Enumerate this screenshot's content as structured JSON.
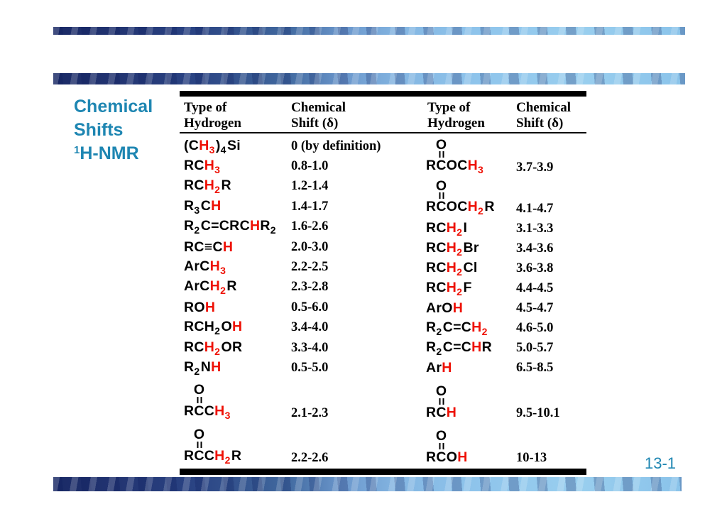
{
  "slide": {
    "title": {
      "line1": "Chemical",
      "line2": "Shifts",
      "line3_sup": "1",
      "line3_text": "H-NMR"
    },
    "page_number": "13-1",
    "colors": {
      "accent": "#1e86b2",
      "highlight_red": "#ee1105",
      "bar_black": "#000000"
    }
  },
  "table": {
    "headers": [
      {
        "line1": "Type of",
        "line2": "Hydrogen"
      },
      {
        "line1": "Chemical",
        "line2": "Shift (δ)"
      },
      {
        "line1": "Type of",
        "line2": "Hydrogen"
      },
      {
        "line1": "Chemical",
        "line2": "Shift (δ)"
      }
    ],
    "left_rows": [
      {
        "formula": [
          {
            "t": "("
          },
          {
            "t": "C"
          },
          {
            "t": "H",
            "red": true
          },
          {
            "t": "3",
            "red": true,
            "sub": true
          },
          {
            "t": ")"
          },
          {
            "t": "4",
            "sub": true
          },
          {
            "t": "Si"
          }
        ],
        "shift": "0 (by definition)"
      },
      {
        "formula": [
          {
            "t": "R"
          },
          {
            "t": "C"
          },
          {
            "t": "H",
            "red": true
          },
          {
            "t": "3",
            "red": true,
            "sub": true
          }
        ],
        "shift": "0.8-1.0"
      },
      {
        "formula": [
          {
            "t": "R"
          },
          {
            "t": "C"
          },
          {
            "t": "H",
            "red": true
          },
          {
            "t": "2",
            "red": true,
            "sub": true
          },
          {
            "t": "R"
          }
        ],
        "shift": "1.2-1.4"
      },
      {
        "formula": [
          {
            "t": "R"
          },
          {
            "t": "3",
            "sub": true
          },
          {
            "t": "C"
          },
          {
            "t": "H",
            "red": true
          }
        ],
        "shift": "1.4-1.7"
      },
      {
        "formula": [
          {
            "t": "R"
          },
          {
            "t": "2",
            "sub": true
          },
          {
            "t": "C"
          },
          {
            "t": "="
          },
          {
            "t": "C"
          },
          {
            "t": "R"
          },
          {
            "t": "C"
          },
          {
            "t": "H",
            "red": true
          },
          {
            "t": "R"
          },
          {
            "t": "2",
            "sub": true
          }
        ],
        "shift": "1.6-2.6"
      },
      {
        "formula": [
          {
            "t": "R"
          },
          {
            "t": "C"
          },
          {
            "t": "≡"
          },
          {
            "t": "C"
          },
          {
            "t": "H",
            "red": true
          }
        ],
        "shift": "2.0-3.0"
      },
      {
        "formula": [
          {
            "t": "Ar"
          },
          {
            "t": "C"
          },
          {
            "t": "H",
            "red": true
          },
          {
            "t": "3",
            "red": true,
            "sub": true
          }
        ],
        "shift": "2.2-2.5"
      },
      {
        "formula": [
          {
            "t": "Ar"
          },
          {
            "t": "C"
          },
          {
            "t": "H",
            "red": true
          },
          {
            "t": "2",
            "red": true,
            "sub": true
          },
          {
            "t": "R"
          }
        ],
        "shift": "2.3-2.8"
      },
      {
        "formula": [
          {
            "t": "R"
          },
          {
            "t": "O"
          },
          {
            "t": "H",
            "red": true
          }
        ],
        "shift": "0.5-6.0"
      },
      {
        "formula": [
          {
            "t": "R"
          },
          {
            "t": "C"
          },
          {
            "t": "H"
          },
          {
            "t": "2",
            "sub": true
          },
          {
            "t": "O"
          },
          {
            "t": "H",
            "red": true
          }
        ],
        "shift": "3.4-4.0"
      },
      {
        "formula": [
          {
            "t": "R"
          },
          {
            "t": "C"
          },
          {
            "t": "H",
            "red": true
          },
          {
            "t": "2",
            "red": true,
            "sub": true
          },
          {
            "t": "O"
          },
          {
            "t": "R"
          }
        ],
        "shift": "3.3-4.0"
      },
      {
        "formula": [
          {
            "t": "R"
          },
          {
            "t": "2",
            "sub": true
          },
          {
            "t": "N"
          },
          {
            "t": "H",
            "red": true
          }
        ],
        "shift": "0.5-5.0"
      },
      {
        "tall": true,
        "formula": [
          {
            "t": "R"
          },
          {
            "t": "C",
            "o": "O"
          },
          {
            "t": "C"
          },
          {
            "t": "H",
            "red": true
          },
          {
            "t": "3",
            "red": true,
            "sub": true
          }
        ],
        "shift": "2.1-2.3"
      },
      {
        "tall": true,
        "formula": [
          {
            "t": "R"
          },
          {
            "t": "C",
            "o": "O"
          },
          {
            "t": "C"
          },
          {
            "t": "H",
            "red": true
          },
          {
            "t": "2",
            "red": true,
            "sub": true
          },
          {
            "t": "R"
          }
        ],
        "shift": "2.2-2.6"
      }
    ],
    "right_rows": [
      {
        "tall": true,
        "formula": [
          {
            "t": "R"
          },
          {
            "t": "C",
            "o": "O"
          },
          {
            "t": "O"
          },
          {
            "t": "C"
          },
          {
            "t": "H",
            "red": true
          },
          {
            "t": "3",
            "red": true,
            "sub": true
          }
        ],
        "shift": "3.7-3.9"
      },
      {
        "tall": true,
        "formula": [
          {
            "t": "R"
          },
          {
            "t": "C",
            "o": "O"
          },
          {
            "t": "O"
          },
          {
            "t": "C"
          },
          {
            "t": "H",
            "red": true
          },
          {
            "t": "2",
            "red": true,
            "sub": true
          },
          {
            "t": "R"
          }
        ],
        "shift": "4.1-4.7"
      },
      {
        "formula": [
          {
            "t": "R"
          },
          {
            "t": "C"
          },
          {
            "t": "H",
            "red": true
          },
          {
            "t": "2",
            "red": true,
            "sub": true
          },
          {
            "t": "I"
          }
        ],
        "shift": "3.1-3.3"
      },
      {
        "formula": [
          {
            "t": "R"
          },
          {
            "t": "C"
          },
          {
            "t": "H",
            "red": true
          },
          {
            "t": "2",
            "red": true,
            "sub": true
          },
          {
            "t": "Br"
          }
        ],
        "shift": "3.4-3.6"
      },
      {
        "formula": [
          {
            "t": "R"
          },
          {
            "t": "C"
          },
          {
            "t": "H",
            "red": true
          },
          {
            "t": "2",
            "red": true,
            "sub": true
          },
          {
            "t": "Cl"
          }
        ],
        "shift": "3.6-3.8"
      },
      {
        "formula": [
          {
            "t": "R"
          },
          {
            "t": "C"
          },
          {
            "t": "H",
            "red": true
          },
          {
            "t": "2",
            "red": true,
            "sub": true
          },
          {
            "t": "F"
          }
        ],
        "shift": "4.4-4.5"
      },
      {
        "formula": [
          {
            "t": "Ar"
          },
          {
            "t": "O"
          },
          {
            "t": "H",
            "red": true
          }
        ],
        "shift": "4.5-4.7"
      },
      {
        "formula": [
          {
            "t": "R"
          },
          {
            "t": "2",
            "sub": true
          },
          {
            "t": "C"
          },
          {
            "t": "="
          },
          {
            "t": "C"
          },
          {
            "t": "H",
            "red": true
          },
          {
            "t": "2",
            "red": true,
            "sub": true
          }
        ],
        "shift": "4.6-5.0"
      },
      {
        "formula": [
          {
            "t": "R"
          },
          {
            "t": "2",
            "sub": true
          },
          {
            "t": "C"
          },
          {
            "t": "="
          },
          {
            "t": "C"
          },
          {
            "t": "H",
            "red": true
          },
          {
            "t": "R"
          }
        ],
        "shift": "5.0-5.7"
      },
      {
        "formula": [
          {
            "t": "Ar"
          },
          {
            "t": "H",
            "red": true
          }
        ],
        "shift": "6.5-8.5"
      },
      {
        "tall": true,
        "formula": [
          {
            "t": "R"
          },
          {
            "t": "C",
            "o": "O"
          },
          {
            "t": "H",
            "red": true
          }
        ],
        "shift": "9.5-10.1"
      },
      {
        "tall": true,
        "formula": [
          {
            "t": "R"
          },
          {
            "t": "C",
            "o": "O"
          },
          {
            "t": "O"
          },
          {
            "t": "H",
            "red": true
          }
        ],
        "shift": "10-13"
      }
    ]
  }
}
